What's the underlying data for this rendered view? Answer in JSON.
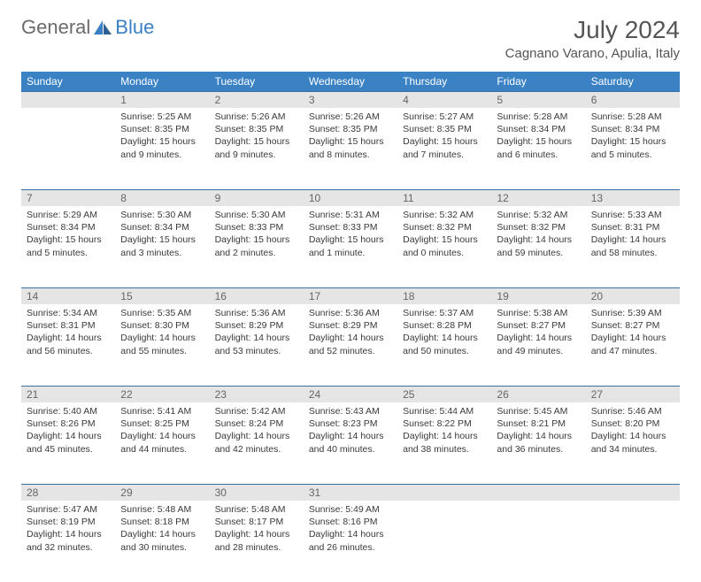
{
  "logo": {
    "text_gray": "General",
    "text_blue": "Blue"
  },
  "title": "July 2024",
  "location": "Cagnano Varano, Apulia, Italy",
  "colors": {
    "header_bg": "#3b82c4",
    "header_text": "#ffffff",
    "daynum_bg": "#e5e5e5",
    "daynum_text": "#666666",
    "border": "#3b6fa0",
    "body_text": "#3a3a3a",
    "logo_gray": "#6b6b6b",
    "logo_blue": "#3b7fc4"
  },
  "weekdays": [
    "Sunday",
    "Monday",
    "Tuesday",
    "Wednesday",
    "Thursday",
    "Friday",
    "Saturday"
  ],
  "weeks": [
    [
      {
        "n": "",
        "sunrise": "",
        "sunset": "",
        "daylight": ""
      },
      {
        "n": "1",
        "sunrise": "Sunrise: 5:25 AM",
        "sunset": "Sunset: 8:35 PM",
        "daylight": "Daylight: 15 hours and 9 minutes."
      },
      {
        "n": "2",
        "sunrise": "Sunrise: 5:26 AM",
        "sunset": "Sunset: 8:35 PM",
        "daylight": "Daylight: 15 hours and 9 minutes."
      },
      {
        "n": "3",
        "sunrise": "Sunrise: 5:26 AM",
        "sunset": "Sunset: 8:35 PM",
        "daylight": "Daylight: 15 hours and 8 minutes."
      },
      {
        "n": "4",
        "sunrise": "Sunrise: 5:27 AM",
        "sunset": "Sunset: 8:35 PM",
        "daylight": "Daylight: 15 hours and 7 minutes."
      },
      {
        "n": "5",
        "sunrise": "Sunrise: 5:28 AM",
        "sunset": "Sunset: 8:34 PM",
        "daylight": "Daylight: 15 hours and 6 minutes."
      },
      {
        "n": "6",
        "sunrise": "Sunrise: 5:28 AM",
        "sunset": "Sunset: 8:34 PM",
        "daylight": "Daylight: 15 hours and 5 minutes."
      }
    ],
    [
      {
        "n": "7",
        "sunrise": "Sunrise: 5:29 AM",
        "sunset": "Sunset: 8:34 PM",
        "daylight": "Daylight: 15 hours and 5 minutes."
      },
      {
        "n": "8",
        "sunrise": "Sunrise: 5:30 AM",
        "sunset": "Sunset: 8:34 PM",
        "daylight": "Daylight: 15 hours and 3 minutes."
      },
      {
        "n": "9",
        "sunrise": "Sunrise: 5:30 AM",
        "sunset": "Sunset: 8:33 PM",
        "daylight": "Daylight: 15 hours and 2 minutes."
      },
      {
        "n": "10",
        "sunrise": "Sunrise: 5:31 AM",
        "sunset": "Sunset: 8:33 PM",
        "daylight": "Daylight: 15 hours and 1 minute."
      },
      {
        "n": "11",
        "sunrise": "Sunrise: 5:32 AM",
        "sunset": "Sunset: 8:32 PM",
        "daylight": "Daylight: 15 hours and 0 minutes."
      },
      {
        "n": "12",
        "sunrise": "Sunrise: 5:32 AM",
        "sunset": "Sunset: 8:32 PM",
        "daylight": "Daylight: 14 hours and 59 minutes."
      },
      {
        "n": "13",
        "sunrise": "Sunrise: 5:33 AM",
        "sunset": "Sunset: 8:31 PM",
        "daylight": "Daylight: 14 hours and 58 minutes."
      }
    ],
    [
      {
        "n": "14",
        "sunrise": "Sunrise: 5:34 AM",
        "sunset": "Sunset: 8:31 PM",
        "daylight": "Daylight: 14 hours and 56 minutes."
      },
      {
        "n": "15",
        "sunrise": "Sunrise: 5:35 AM",
        "sunset": "Sunset: 8:30 PM",
        "daylight": "Daylight: 14 hours and 55 minutes."
      },
      {
        "n": "16",
        "sunrise": "Sunrise: 5:36 AM",
        "sunset": "Sunset: 8:29 PM",
        "daylight": "Daylight: 14 hours and 53 minutes."
      },
      {
        "n": "17",
        "sunrise": "Sunrise: 5:36 AM",
        "sunset": "Sunset: 8:29 PM",
        "daylight": "Daylight: 14 hours and 52 minutes."
      },
      {
        "n": "18",
        "sunrise": "Sunrise: 5:37 AM",
        "sunset": "Sunset: 8:28 PM",
        "daylight": "Daylight: 14 hours and 50 minutes."
      },
      {
        "n": "19",
        "sunrise": "Sunrise: 5:38 AM",
        "sunset": "Sunset: 8:27 PM",
        "daylight": "Daylight: 14 hours and 49 minutes."
      },
      {
        "n": "20",
        "sunrise": "Sunrise: 5:39 AM",
        "sunset": "Sunset: 8:27 PM",
        "daylight": "Daylight: 14 hours and 47 minutes."
      }
    ],
    [
      {
        "n": "21",
        "sunrise": "Sunrise: 5:40 AM",
        "sunset": "Sunset: 8:26 PM",
        "daylight": "Daylight: 14 hours and 45 minutes."
      },
      {
        "n": "22",
        "sunrise": "Sunrise: 5:41 AM",
        "sunset": "Sunset: 8:25 PM",
        "daylight": "Daylight: 14 hours and 44 minutes."
      },
      {
        "n": "23",
        "sunrise": "Sunrise: 5:42 AM",
        "sunset": "Sunset: 8:24 PM",
        "daylight": "Daylight: 14 hours and 42 minutes."
      },
      {
        "n": "24",
        "sunrise": "Sunrise: 5:43 AM",
        "sunset": "Sunset: 8:23 PM",
        "daylight": "Daylight: 14 hours and 40 minutes."
      },
      {
        "n": "25",
        "sunrise": "Sunrise: 5:44 AM",
        "sunset": "Sunset: 8:22 PM",
        "daylight": "Daylight: 14 hours and 38 minutes."
      },
      {
        "n": "26",
        "sunrise": "Sunrise: 5:45 AM",
        "sunset": "Sunset: 8:21 PM",
        "daylight": "Daylight: 14 hours and 36 minutes."
      },
      {
        "n": "27",
        "sunrise": "Sunrise: 5:46 AM",
        "sunset": "Sunset: 8:20 PM",
        "daylight": "Daylight: 14 hours and 34 minutes."
      }
    ],
    [
      {
        "n": "28",
        "sunrise": "Sunrise: 5:47 AM",
        "sunset": "Sunset: 8:19 PM",
        "daylight": "Daylight: 14 hours and 32 minutes."
      },
      {
        "n": "29",
        "sunrise": "Sunrise: 5:48 AM",
        "sunset": "Sunset: 8:18 PM",
        "daylight": "Daylight: 14 hours and 30 minutes."
      },
      {
        "n": "30",
        "sunrise": "Sunrise: 5:48 AM",
        "sunset": "Sunset: 8:17 PM",
        "daylight": "Daylight: 14 hours and 28 minutes."
      },
      {
        "n": "31",
        "sunrise": "Sunrise: 5:49 AM",
        "sunset": "Sunset: 8:16 PM",
        "daylight": "Daylight: 14 hours and 26 minutes."
      },
      {
        "n": "",
        "sunrise": "",
        "sunset": "",
        "daylight": ""
      },
      {
        "n": "",
        "sunrise": "",
        "sunset": "",
        "daylight": ""
      },
      {
        "n": "",
        "sunrise": "",
        "sunset": "",
        "daylight": ""
      }
    ]
  ]
}
